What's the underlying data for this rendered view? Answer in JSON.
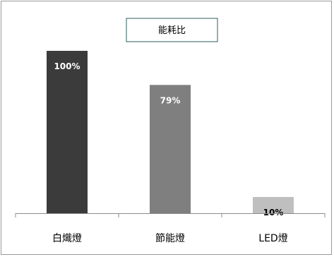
{
  "chart_data": {
    "type": "bar",
    "legend": "能耗比",
    "legend_position": "top-center",
    "categories": [
      "白熾燈",
      "節能燈",
      "LED燈"
    ],
    "values": [
      100,
      79,
      10
    ],
    "data_labels": [
      "100%",
      "79%",
      "10%"
    ],
    "bar_colors": [
      "#3b3b3b",
      "#7f7f7f",
      "#bfbfbf"
    ],
    "label_colors": [
      "#ffffff",
      "#ffffff",
      "#000000"
    ],
    "ylim": [
      0,
      100
    ],
    "grid": false,
    "border_color": "#9a9a9a",
    "axis_color": "#8c8c8c",
    "legend_border_color": "#2e5b5b"
  }
}
